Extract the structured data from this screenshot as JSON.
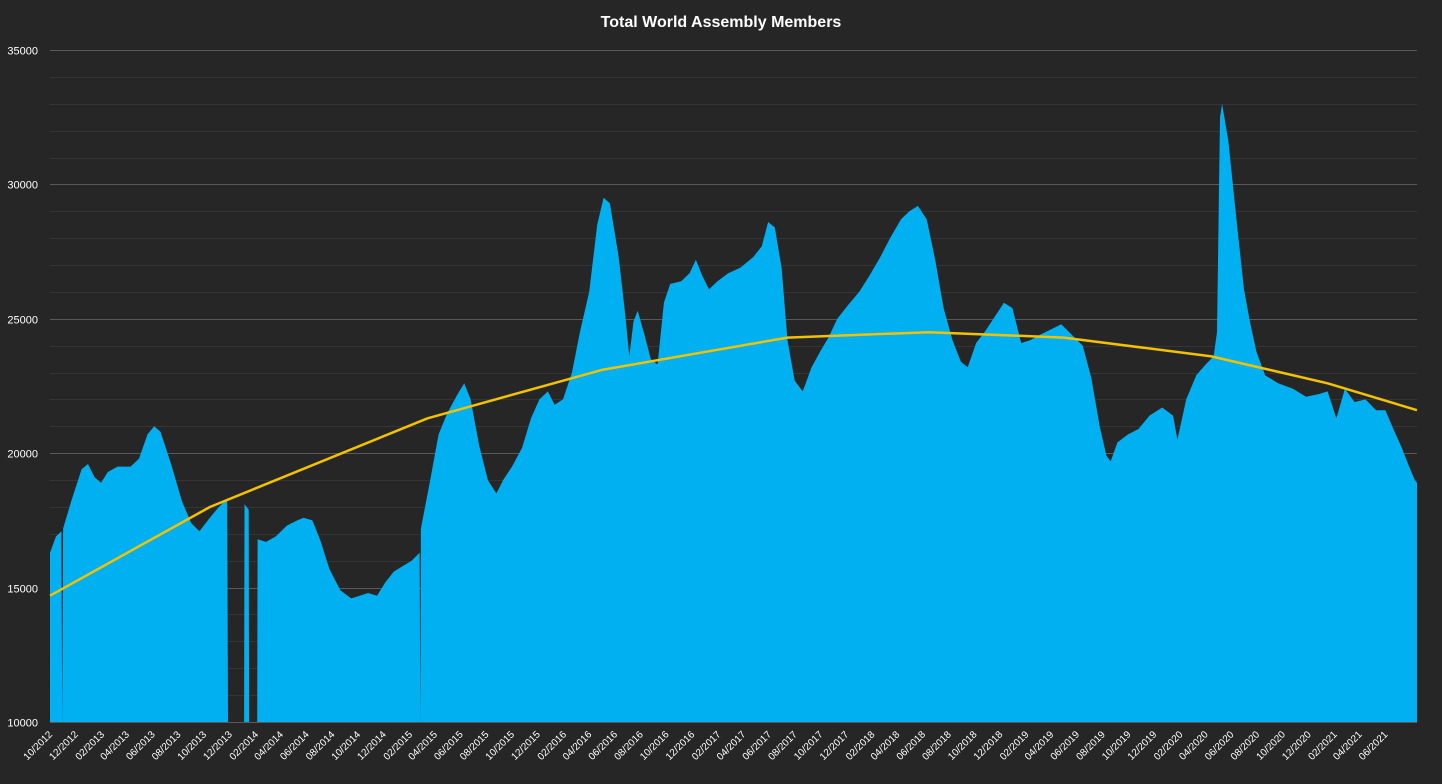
{
  "chart_data": {
    "type": "area",
    "title": "Total World Assembly Members",
    "xlabel": "",
    "ylabel": "",
    "ylim": [
      10000,
      35000
    ],
    "yticks": [
      10000,
      15000,
      20000,
      25000,
      30000,
      35000
    ],
    "grid": true,
    "legend": "none",
    "colors": {
      "background": "#262626",
      "area": "#00b0f0",
      "trend": "#f2c200",
      "grid": "#595959",
      "text": "#ffffff"
    },
    "xlim": [
      "2012-10-01",
      "2021-08-15"
    ],
    "xticks": [
      "10/2012",
      "12/2012",
      "02/2013",
      "04/2013",
      "06/2013",
      "08/2013",
      "10/2013",
      "12/2013",
      "02/2014",
      "04/2014",
      "06/2014",
      "08/2014",
      "10/2014",
      "12/2014",
      "02/2015",
      "04/2015",
      "06/2015",
      "08/2015",
      "10/2015",
      "12/2015",
      "02/2016",
      "04/2016",
      "06/2016",
      "08/2016",
      "10/2016",
      "12/2016",
      "02/2017",
      "04/2017",
      "06/2017",
      "08/2017",
      "10/2017",
      "12/2017",
      "02/2018",
      "04/2018",
      "06/2018",
      "08/2018",
      "10/2018",
      "12/2018",
      "02/2019",
      "04/2019",
      "06/2019",
      "08/2019",
      "10/2019",
      "12/2019",
      "02/2020",
      "04/2020",
      "06/2020",
      "08/2020",
      "10/2020",
      "12/2020",
      "02/2021",
      "04/2021",
      "06/2021"
    ],
    "series": [
      {
        "kind": "area",
        "points": [
          [
            "2012-10-01",
            16300
          ],
          [
            "2012-10-15",
            16900
          ],
          [
            "2012-10-28",
            17100
          ],
          [
            "2012-10-30",
            10000
          ],
          [
            "2012-11-01",
            17200
          ],
          [
            "2012-11-20",
            18200
          ],
          [
            "2012-12-15",
            19400
          ],
          [
            "2012-12-30",
            19600
          ],
          [
            "2013-01-15",
            19100
          ],
          [
            "2013-01-30",
            18900
          ],
          [
            "2013-02-15",
            19300
          ],
          [
            "2013-03-10",
            19500
          ],
          [
            "2013-04-10",
            19500
          ],
          [
            "2013-04-30",
            19800
          ],
          [
            "2013-05-20",
            20700
          ],
          [
            "2013-06-05",
            21000
          ],
          [
            "2013-06-20",
            20800
          ],
          [
            "2013-07-15",
            19600
          ],
          [
            "2013-08-10",
            18200
          ],
          [
            "2013-09-01",
            17400
          ],
          [
            "2013-09-20",
            17100
          ],
          [
            "2013-10-15",
            17600
          ],
          [
            "2013-11-05",
            18000
          ],
          [
            "2013-11-25",
            18300
          ],
          [
            "2013-11-27",
            10000
          ],
          [
            "2014-01-04",
            10000
          ],
          [
            "2014-01-05",
            18100
          ],
          [
            "2014-01-15",
            17900
          ],
          [
            "2014-01-16",
            10000
          ],
          [
            "2014-02-04",
            10000
          ],
          [
            "2014-02-05",
            16800
          ],
          [
            "2014-02-25",
            16700
          ],
          [
            "2014-03-20",
            16900
          ],
          [
            "2014-04-15",
            17300
          ],
          [
            "2014-05-10",
            17500
          ],
          [
            "2014-05-25",
            17600
          ],
          [
            "2014-06-15",
            17500
          ],
          [
            "2014-07-05",
            16700
          ],
          [
            "2014-07-25",
            15700
          ],
          [
            "2014-08-20",
            14900
          ],
          [
            "2014-09-15",
            14600
          ],
          [
            "2014-10-05",
            14700
          ],
          [
            "2014-10-25",
            14800
          ],
          [
            "2014-11-15",
            14700
          ],
          [
            "2014-12-05",
            15200
          ],
          [
            "2014-12-25",
            15600
          ],
          [
            "2015-01-15",
            15800
          ],
          [
            "2015-02-05",
            16000
          ],
          [
            "2015-02-24",
            16300
          ],
          [
            "2015-02-26",
            10000
          ],
          [
            "2015-02-27",
            17200
          ],
          [
            "2015-03-20",
            18900
          ],
          [
            "2015-04-10",
            20700
          ],
          [
            "2015-05-01",
            21500
          ],
          [
            "2015-05-25",
            22200
          ],
          [
            "2015-06-10",
            22600
          ],
          [
            "2015-06-25",
            22000
          ],
          [
            "2015-07-15",
            20300
          ],
          [
            "2015-08-05",
            19000
          ],
          [
            "2015-08-25",
            18500
          ],
          [
            "2015-09-10",
            19000
          ],
          [
            "2015-10-01",
            19500
          ],
          [
            "2015-10-25",
            20200
          ],
          [
            "2015-11-15",
            21300
          ],
          [
            "2015-12-05",
            22000
          ],
          [
            "2015-12-25",
            22300
          ],
          [
            "2016-01-10",
            21800
          ],
          [
            "2016-01-30",
            22000
          ],
          [
            "2016-02-20",
            23000
          ],
          [
            "2016-03-10",
            24500
          ],
          [
            "2016-04-01",
            26000
          ],
          [
            "2016-04-20",
            28500
          ],
          [
            "2016-05-05",
            29500
          ],
          [
            "2016-05-20",
            29300
          ],
          [
            "2016-06-10",
            27300
          ],
          [
            "2016-06-25",
            25200
          ],
          [
            "2016-07-05",
            23600
          ],
          [
            "2016-07-15",
            24900
          ],
          [
            "2016-07-25",
            25300
          ],
          [
            "2016-08-10",
            24400
          ],
          [
            "2016-08-25",
            23500
          ],
          [
            "2016-09-10",
            23300
          ],
          [
            "2016-09-25",
            25600
          ],
          [
            "2016-10-10",
            26300
          ],
          [
            "2016-11-05",
            26400
          ],
          [
            "2016-11-25",
            26700
          ],
          [
            "2016-12-10",
            27200
          ],
          [
            "2016-12-25",
            26600
          ],
          [
            "2017-01-10",
            26100
          ],
          [
            "2017-01-30",
            26400
          ],
          [
            "2017-02-25",
            26700
          ],
          [
            "2017-03-25",
            26900
          ],
          [
            "2017-04-25",
            27300
          ],
          [
            "2017-05-15",
            27700
          ],
          [
            "2017-05-30",
            28600
          ],
          [
            "2017-06-15",
            28400
          ],
          [
            "2017-07-01",
            26900
          ],
          [
            "2017-07-15",
            24200
          ],
          [
            "2017-08-01",
            22700
          ],
          [
            "2017-08-20",
            22300
          ],
          [
            "2017-09-10",
            23200
          ],
          [
            "2017-10-01",
            23800
          ],
          [
            "2017-10-20",
            24300
          ],
          [
            "2017-11-10",
            25000
          ],
          [
            "2017-12-05",
            25500
          ],
          [
            "2018-01-01",
            26000
          ],
          [
            "2018-01-25",
            26600
          ],
          [
            "2018-02-20",
            27300
          ],
          [
            "2018-03-15",
            28000
          ],
          [
            "2018-04-10",
            28700
          ],
          [
            "2018-04-30",
            29000
          ],
          [
            "2018-05-20",
            29200
          ],
          [
            "2018-06-10",
            28700
          ],
          [
            "2018-06-30",
            27200
          ],
          [
            "2018-07-20",
            25400
          ],
          [
            "2018-08-10",
            24200
          ],
          [
            "2018-08-30",
            23400
          ],
          [
            "2018-09-15",
            23200
          ],
          [
            "2018-10-05",
            24100
          ],
          [
            "2018-10-25",
            24500
          ],
          [
            "2018-11-15",
            25000
          ],
          [
            "2018-12-10",
            25600
          ],
          [
            "2018-12-30",
            25400
          ],
          [
            "2019-01-20",
            24100
          ],
          [
            "2019-02-10",
            24200
          ],
          [
            "2019-03-05",
            24400
          ],
          [
            "2019-03-30",
            24600
          ],
          [
            "2019-04-25",
            24800
          ],
          [
            "2019-05-20",
            24400
          ],
          [
            "2019-06-15",
            24000
          ],
          [
            "2019-07-05",
            22800
          ],
          [
            "2019-07-25",
            21000
          ],
          [
            "2019-08-10",
            19900
          ],
          [
            "2019-08-20",
            19700
          ],
          [
            "2019-09-05",
            20400
          ],
          [
            "2019-09-30",
            20700
          ],
          [
            "2019-10-25",
            20900
          ],
          [
            "2019-11-20",
            21400
          ],
          [
            "2019-12-20",
            21700
          ],
          [
            "2020-01-15",
            21400
          ],
          [
            "2020-01-25",
            20500
          ],
          [
            "2020-02-15",
            22000
          ],
          [
            "2020-03-10",
            22900
          ],
          [
            "2020-04-01",
            23300
          ],
          [
            "2020-04-20",
            23600
          ],
          [
            "2020-04-28",
            24500
          ],
          [
            "2020-05-05",
            32500
          ],
          [
            "2020-05-10",
            33000
          ],
          [
            "2020-05-25",
            31600
          ],
          [
            "2020-06-15",
            28400
          ],
          [
            "2020-07-01",
            26100
          ],
          [
            "2020-07-15",
            24900
          ],
          [
            "2020-07-30",
            23800
          ],
          [
            "2020-08-20",
            22900
          ],
          [
            "2020-09-20",
            22600
          ],
          [
            "2020-10-25",
            22400
          ],
          [
            "2020-11-25",
            22100
          ],
          [
            "2020-12-25",
            22200
          ],
          [
            "2021-01-15",
            22300
          ],
          [
            "2021-02-05",
            21300
          ],
          [
            "2021-02-25",
            22400
          ],
          [
            "2021-03-20",
            21900
          ],
          [
            "2021-04-15",
            22000
          ],
          [
            "2021-05-10",
            21600
          ],
          [
            "2021-06-01",
            21600
          ],
          [
            "2021-06-20",
            20900
          ],
          [
            "2021-07-10",
            20200
          ],
          [
            "2021-07-25",
            19600
          ],
          [
            "2021-08-10",
            19000
          ],
          [
            "2021-08-15",
            18900
          ]
        ]
      },
      {
        "kind": "trend",
        "points": [
          [
            "2012-10-01",
            14700
          ],
          [
            "2013-10-15",
            18000
          ],
          [
            "2015-03-15",
            21300
          ],
          [
            "2016-05-01",
            23100
          ],
          [
            "2017-07-15",
            24300
          ],
          [
            "2018-06-15",
            24500
          ],
          [
            "2019-05-01",
            24300
          ],
          [
            "2020-04-15",
            23600
          ],
          [
            "2021-01-15",
            22600
          ],
          [
            "2021-08-15",
            21600
          ]
        ]
      }
    ]
  }
}
